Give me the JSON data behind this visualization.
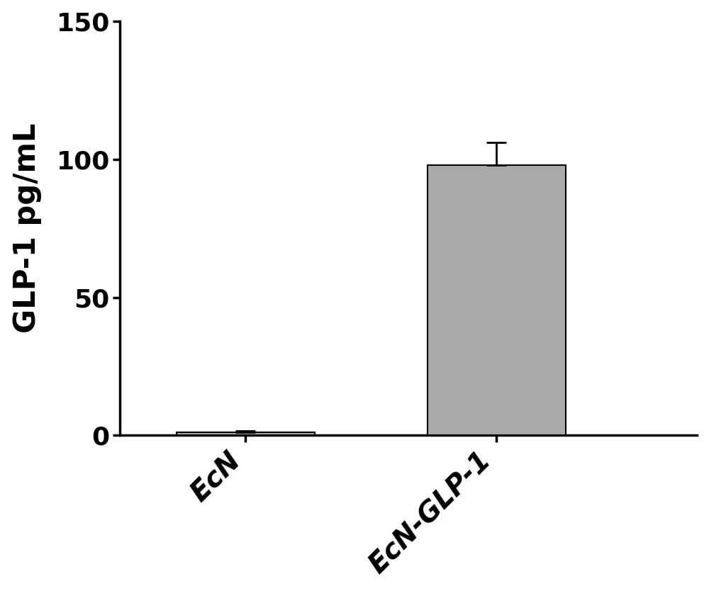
{
  "categories": [
    "EcN",
    "EcN-GLP-1"
  ],
  "values": [
    1.0,
    98.0
  ],
  "errors": [
    0.5,
    8.0
  ],
  "bar_color": "#aaaaaa",
  "bar_edge_color": "#000000",
  "bar_width": 0.55,
  "ylabel": "GLP-1 pg/mL",
  "ylim": [
    0,
    150
  ],
  "yticks": [
    0,
    50,
    100,
    150
  ],
  "tick_label_fontsize": 26,
  "ylabel_fontsize": 30,
  "xlabel_fontsize": 28,
  "background_color": "#ffffff",
  "error_capsize": 10,
  "error_linewidth": 2.0,
  "bar_linewidth": 1.5,
  "xlim": [
    -0.5,
    1.8
  ]
}
